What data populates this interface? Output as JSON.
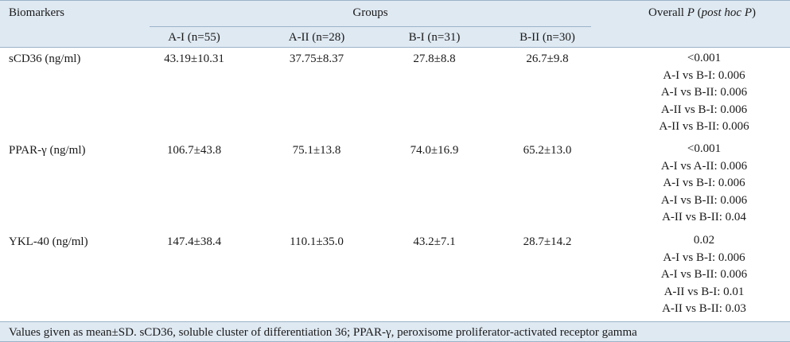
{
  "header": {
    "col_biomarkers": "Biomarkers",
    "col_groups": "Groups",
    "col_overall_prefix": "Overall ",
    "col_overall_p": "P",
    "col_overall_posthoc": "post hoc P",
    "group_a1": "A-I (n=55)",
    "group_a2": "A-II (n=28)",
    "group_b1": "B-I (n=31)",
    "group_b2": "B-II (n=30)"
  },
  "rows": [
    {
      "biomarker": "sCD36 (ng/ml)",
      "a1": "43.19±10.31",
      "a2": "37.75±8.37",
      "b1": "27.8±8.8",
      "b2": "26.7±9.8",
      "p": [
        "<0.001",
        "A-I vs B-I: 0.006",
        "A-I vs B-II: 0.006",
        "A-II vs B-I: 0.006",
        "A-II vs B-II: 0.006"
      ]
    },
    {
      "biomarker": "PPAR-γ (ng/ml)",
      "a1": "106.7±43.8",
      "a2": "75.1±13.8",
      "b1": "74.0±16.9",
      "b2": "65.2±13.0",
      "p": [
        "<0.001",
        "A-I vs A-II: 0.006",
        "A-I vs B-I: 0.006",
        "A-I vs B-II: 0.006",
        "A-II vs B-II: 0.04"
      ]
    },
    {
      "biomarker": "YKL-40 (ng/ml)",
      "a1": "147.4±38.4",
      "a2": "110.1±35.0",
      "b1": "43.2±7.1",
      "b2": "28.7±14.2",
      "p": [
        "0.02",
        "A-I vs B-I: 0.006",
        "A-I vs B-II: 0.006",
        "A-II vs B-I: 0.01",
        "A-II vs B-II: 0.03"
      ]
    }
  ],
  "footer": {
    "note": "Values given as mean±SD. sCD36, soluble cluster of differentiation 36; PPAR-γ, peroxisome proliferator-activated receptor gamma"
  }
}
